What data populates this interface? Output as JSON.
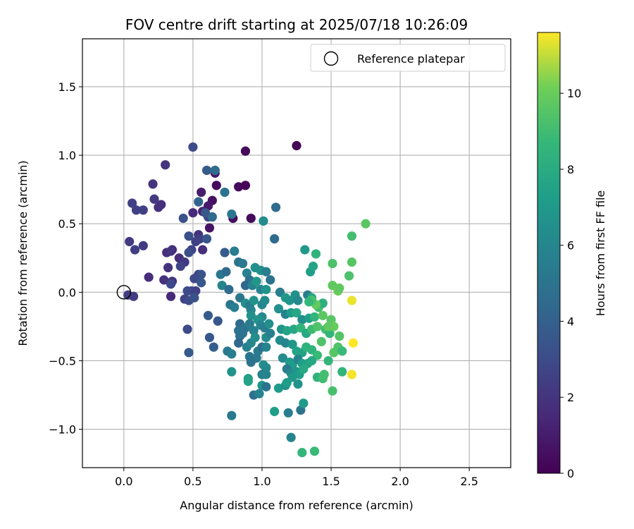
{
  "chart_data": {
    "type": "scatter",
    "title": "FOV centre drift starting at 2025/07/18 10:26:09",
    "xlabel": "Angular distance from reference (arcmin)",
    "ylabel": "Rotation from reference (arcmin)",
    "xlim": [
      -0.3,
      2.8
    ],
    "ylim": [
      -1.28,
      1.85
    ],
    "xticks": [
      0.0,
      0.5,
      1.0,
      1.5,
      2.0,
      2.5
    ],
    "xtick_labels": [
      "0.0",
      "0.5",
      "1.0",
      "1.5",
      "2.0",
      "2.5"
    ],
    "yticks": [
      -1.0,
      -0.5,
      0.0,
      0.5,
      1.0,
      1.5
    ],
    "ytick_labels": [
      "−1.0",
      "−0.5",
      "0.0",
      "0.5",
      "1.0",
      "1.5"
    ],
    "grid": true,
    "legend": {
      "placement": "upper-right",
      "entries": [
        "Reference platepar"
      ]
    },
    "reference_point": {
      "x": 0.0,
      "y": 0.0,
      "name": "Reference platepar"
    },
    "colorbar": {
      "label": "Hours from first FF file",
      "range": [
        0,
        11.6
      ],
      "ticks": [
        0,
        2,
        4,
        6,
        8,
        10
      ],
      "tick_labels": [
        "0",
        "2",
        "4",
        "6",
        "8",
        "10"
      ],
      "colormap": "viridis"
    },
    "points": [
      {
        "x": 1.25,
        "y": 1.07,
        "t": 0.1
      },
      {
        "x": 0.88,
        "y": 1.03,
        "t": 0.3
      },
      {
        "x": 0.66,
        "y": 0.87,
        "t": 0.8
      },
      {
        "x": 0.67,
        "y": 0.78,
        "t": 0.4
      },
      {
        "x": 0.83,
        "y": 0.77,
        "t": 0.3
      },
      {
        "x": 0.88,
        "y": 0.78,
        "t": 0.2
      },
      {
        "x": 0.92,
        "y": 0.54,
        "t": 0.4
      },
      {
        "x": 0.64,
        "y": 0.67,
        "t": 0.6
      },
      {
        "x": 0.61,
        "y": 0.63,
        "t": 0.9
      },
      {
        "x": 0.56,
        "y": 0.73,
        "t": 1.0
      },
      {
        "x": 0.62,
        "y": 0.47,
        "t": 0.7
      },
      {
        "x": 0.79,
        "y": 0.54,
        "t": 0.5
      },
      {
        "x": 0.57,
        "y": 0.59,
        "t": 1.3
      },
      {
        "x": 0.61,
        "y": 0.55,
        "t": 2.8
      },
      {
        "x": 0.5,
        "y": 1.06,
        "t": 3.0
      },
      {
        "x": 0.6,
        "y": 0.89,
        "t": 3.8
      },
      {
        "x": 0.66,
        "y": 0.89,
        "t": 4.6
      },
      {
        "x": 0.3,
        "y": 0.93,
        "t": 2.0
      },
      {
        "x": 0.21,
        "y": 0.79,
        "t": 2.0
      },
      {
        "x": 0.22,
        "y": 0.68,
        "t": 2.2
      },
      {
        "x": 0.25,
        "y": 0.62,
        "t": 1.9
      },
      {
        "x": 0.27,
        "y": 0.64,
        "t": 1.8
      },
      {
        "x": 0.06,
        "y": 0.65,
        "t": 2.5
      },
      {
        "x": 0.09,
        "y": 0.6,
        "t": 2.5
      },
      {
        "x": 0.14,
        "y": 0.6,
        "t": 2.5
      },
      {
        "x": 0.04,
        "y": 0.37,
        "t": 2.3
      },
      {
        "x": 0.08,
        "y": 0.31,
        "t": 2.4
      },
      {
        "x": 0.14,
        "y": 0.34,
        "t": 2.3
      },
      {
        "x": 0.31,
        "y": 0.29,
        "t": 1.8
      },
      {
        "x": 0.35,
        "y": 0.31,
        "t": 1.5
      },
      {
        "x": 0.34,
        "y": 0.3,
        "t": 2.0
      },
      {
        "x": 0.32,
        "y": 0.18,
        "t": 1.9
      },
      {
        "x": 0.4,
        "y": 0.25,
        "t": 1.7
      },
      {
        "x": 0.44,
        "y": 0.22,
        "t": 2.2
      },
      {
        "x": 0.41,
        "y": 0.19,
        "t": 2.6
      },
      {
        "x": 0.18,
        "y": 0.11,
        "t": 1.7
      },
      {
        "x": 0.29,
        "y": 0.09,
        "t": 1.9
      },
      {
        "x": 0.35,
        "y": 0.08,
        "t": 2.0
      },
      {
        "x": 0.34,
        "y": 0.06,
        "t": 2.9
      },
      {
        "x": 0.34,
        "y": -0.03,
        "t": 1.6
      },
      {
        "x": 0.03,
        "y": -0.02,
        "t": 2.5
      },
      {
        "x": 0.07,
        "y": -0.03,
        "t": 2.3
      },
      {
        "x": 0.43,
        "y": 0.54,
        "t": 3.3
      },
      {
        "x": 0.47,
        "y": 0.41,
        "t": 3.2
      },
      {
        "x": 0.5,
        "y": 0.58,
        "t": 1.6
      },
      {
        "x": 0.54,
        "y": 0.42,
        "t": 1.9
      },
      {
        "x": 0.55,
        "y": 0.39,
        "t": 2.4
      },
      {
        "x": 0.52,
        "y": 0.37,
        "t": 2.6
      },
      {
        "x": 0.49,
        "y": 0.31,
        "t": 2.7
      },
      {
        "x": 0.47,
        "y": 0.29,
        "t": 3.1
      },
      {
        "x": 0.57,
        "y": 0.31,
        "t": 1.8
      },
      {
        "x": 0.54,
        "y": 0.13,
        "t": 2.7
      },
      {
        "x": 0.56,
        "y": 0.13,
        "t": 3.4
      },
      {
        "x": 0.51,
        "y": 0.1,
        "t": 2.9
      },
      {
        "x": 0.56,
        "y": 0.07,
        "t": 3.6
      },
      {
        "x": 0.46,
        "y": 0.01,
        "t": 3.1
      },
      {
        "x": 0.49,
        "y": 0.01,
        "t": 2.9
      },
      {
        "x": 0.52,
        "y": 0.01,
        "t": 2.6
      },
      {
        "x": 0.44,
        "y": -0.05,
        "t": 2.6
      },
      {
        "x": 0.47,
        "y": -0.06,
        "t": 3.0
      },
      {
        "x": 0.51,
        "y": -0.04,
        "t": 3.3
      },
      {
        "x": 0.54,
        "y": 0.66,
        "t": 4.2
      },
      {
        "x": 0.59,
        "y": 0.58,
        "t": 3.6
      },
      {
        "x": 0.64,
        "y": 0.55,
        "t": 4.5
      },
      {
        "x": 0.6,
        "y": 0.39,
        "t": 3.5
      },
      {
        "x": 0.73,
        "y": 0.73,
        "t": 5.0
      },
      {
        "x": 0.78,
        "y": 0.57,
        "t": 5.2
      },
      {
        "x": 0.73,
        "y": 0.29,
        "t": 3.8
      },
      {
        "x": 0.8,
        "y": 0.3,
        "t": 5.5
      },
      {
        "x": 1.1,
        "y": 0.62,
        "t": 4.6
      },
      {
        "x": 1.09,
        "y": 0.39,
        "t": 4.6
      },
      {
        "x": 1.01,
        "y": 0.52,
        "t": 6.3
      },
      {
        "x": 0.61,
        "y": -0.17,
        "t": 3.8
      },
      {
        "x": 0.68,
        "y": -0.21,
        "t": 3.6
      },
      {
        "x": 0.62,
        "y": -0.33,
        "t": 3.6
      },
      {
        "x": 0.65,
        "y": -0.4,
        "t": 3.9
      },
      {
        "x": 0.46,
        "y": -0.27,
        "t": 3.0
      },
      {
        "x": 0.47,
        "y": -0.44,
        "t": 3.7
      },
      {
        "x": 0.7,
        "y": 0.13,
        "t": 5.2
      },
      {
        "x": 0.74,
        "y": 0.15,
        "t": 4.5
      },
      {
        "x": 0.71,
        "y": 0.05,
        "t": 5.9
      },
      {
        "x": 0.76,
        "y": 0.02,
        "t": 4.6
      },
      {
        "x": 0.77,
        "y": -0.09,
        "t": 5.1
      },
      {
        "x": 0.8,
        "y": -0.11,
        "t": 5.6
      },
      {
        "x": 0.75,
        "y": -0.43,
        "t": 5.3
      },
      {
        "x": 0.78,
        "y": -0.45,
        "t": 5.6
      },
      {
        "x": 0.83,
        "y": 0.22,
        "t": 5.0
      },
      {
        "x": 0.86,
        "y": 0.21,
        "t": 5.3
      },
      {
        "x": 0.89,
        "y": 0.14,
        "t": 5.8
      },
      {
        "x": 0.91,
        "y": 0.09,
        "t": 4.8
      },
      {
        "x": 0.88,
        "y": 0.05,
        "t": 4.3
      },
      {
        "x": 0.95,
        "y": 0.18,
        "t": 6.5
      },
      {
        "x": 0.99,
        "y": 0.16,
        "t": 6.6
      },
      {
        "x": 1.03,
        "y": 0.15,
        "t": 5.6
      },
      {
        "x": 0.93,
        "y": 0.05,
        "t": 5.9
      },
      {
        "x": 0.96,
        "y": 0.08,
        "t": 6.9
      },
      {
        "x": 0.99,
        "y": 0.02,
        "t": 5.9
      },
      {
        "x": 1.03,
        "y": 0.02,
        "t": 6.8
      },
      {
        "x": 1.06,
        "y": 0.09,
        "t": 5.0
      },
      {
        "x": 0.84,
        "y": -0.04,
        "t": 5.2
      },
      {
        "x": 0.88,
        "y": -0.08,
        "t": 6.4
      },
      {
        "x": 0.91,
        "y": -0.1,
        "t": 5.3
      },
      {
        "x": 0.92,
        "y": -0.13,
        "t": 5.9
      },
      {
        "x": 0.94,
        "y": -0.06,
        "t": 6.6
      },
      {
        "x": 1.0,
        "y": -0.09,
        "t": 6.0
      },
      {
        "x": 1.02,
        "y": -0.06,
        "t": 6.2
      },
      {
        "x": 0.92,
        "y": -0.17,
        "t": 6.5
      },
      {
        "x": 1.0,
        "y": -0.18,
        "t": 6.1
      },
      {
        "x": 0.84,
        "y": -0.23,
        "t": 4.5
      },
      {
        "x": 0.88,
        "y": -0.26,
        "t": 5.0
      },
      {
        "x": 0.91,
        "y": -0.23,
        "t": 5.4
      },
      {
        "x": 0.94,
        "y": -0.28,
        "t": 5.8
      },
      {
        "x": 0.97,
        "y": -0.2,
        "t": 6.7
      },
      {
        "x": 0.99,
        "y": -0.24,
        "t": 5.9
      },
      {
        "x": 1.02,
        "y": -0.26,
        "t": 5.5
      },
      {
        "x": 1.05,
        "y": -0.23,
        "t": 6.4
      },
      {
        "x": 0.83,
        "y": -0.28,
        "t": 5.0
      },
      {
        "x": 0.84,
        "y": -0.32,
        "t": 4.8
      },
      {
        "x": 0.86,
        "y": -0.3,
        "t": 4.9
      },
      {
        "x": 0.83,
        "y": -0.37,
        "t": 4.4
      },
      {
        "x": 0.89,
        "y": -0.4,
        "t": 5.7
      },
      {
        "x": 0.92,
        "y": -0.37,
        "t": 6.0
      },
      {
        "x": 0.95,
        "y": -0.33,
        "t": 6.4
      },
      {
        "x": 0.97,
        "y": -0.43,
        "t": 5.4
      },
      {
        "x": 1.0,
        "y": -0.4,
        "t": 4.8
      },
      {
        "x": 1.03,
        "y": -0.33,
        "t": 6.3
      },
      {
        "x": 1.03,
        "y": -0.4,
        "t": 5.9
      },
      {
        "x": 1.06,
        "y": -0.3,
        "t": 5.6
      },
      {
        "x": 0.91,
        "y": -0.47,
        "t": 5.0
      },
      {
        "x": 0.96,
        "y": -0.48,
        "t": 5.3
      },
      {
        "x": 0.92,
        "y": -0.51,
        "t": 4.9
      },
      {
        "x": 1.01,
        "y": -0.53,
        "t": 6.4
      },
      {
        "x": 1.03,
        "y": -0.55,
        "t": 6.2
      },
      {
        "x": 1.0,
        "y": -0.6,
        "t": 5.7
      },
      {
        "x": 1.03,
        "y": -0.6,
        "t": 5.9
      },
      {
        "x": 0.9,
        "y": -0.63,
        "t": 7.3
      },
      {
        "x": 0.9,
        "y": -0.65,
        "t": 7.6
      },
      {
        "x": 1.0,
        "y": -0.68,
        "t": 6.8
      },
      {
        "x": 1.03,
        "y": -0.69,
        "t": 5.0
      },
      {
        "x": 0.94,
        "y": -0.75,
        "t": 4.8
      },
      {
        "x": 0.98,
        "y": -0.74,
        "t": 5.9
      },
      {
        "x": 0.78,
        "y": -0.58,
        "t": 6.7
      },
      {
        "x": 0.78,
        "y": -0.9,
        "t": 5.3
      },
      {
        "x": 1.09,
        "y": -0.87,
        "t": 7.3
      },
      {
        "x": 1.19,
        "y": -0.88,
        "t": 5.6
      },
      {
        "x": 1.12,
        "y": -0.7,
        "t": 7.1
      },
      {
        "x": 1.17,
        "y": -0.68,
        "t": 6.6
      },
      {
        "x": 1.21,
        "y": -1.06,
        "t": 5.9
      },
      {
        "x": 1.29,
        "y": -1.17,
        "t": 8.6
      },
      {
        "x": 1.38,
        "y": -1.16,
        "t": 8.8
      },
      {
        "x": 1.28,
        "y": -0.86,
        "t": 5.1
      },
      {
        "x": 1.3,
        "y": -0.81,
        "t": 7.1
      },
      {
        "x": 1.13,
        "y": 0.0,
        "t": 5.6
      },
      {
        "x": 1.17,
        "y": -0.04,
        "t": 7.1
      },
      {
        "x": 1.2,
        "y": -0.06,
        "t": 6.7
      },
      {
        "x": 1.24,
        "y": -0.02,
        "t": 6.6
      },
      {
        "x": 1.26,
        "y": -0.06,
        "t": 6.1
      },
      {
        "x": 1.33,
        "y": -0.02,
        "t": 5.5
      },
      {
        "x": 1.36,
        "y": -0.04,
        "t": 7.8
      },
      {
        "x": 1.12,
        "y": -0.12,
        "t": 6.5
      },
      {
        "x": 1.17,
        "y": -0.16,
        "t": 5.8
      },
      {
        "x": 1.21,
        "y": -0.15,
        "t": 7.2
      },
      {
        "x": 1.25,
        "y": -0.15,
        "t": 7.8
      },
      {
        "x": 1.29,
        "y": -0.2,
        "t": 6.4
      },
      {
        "x": 1.34,
        "y": -0.19,
        "t": 7.3
      },
      {
        "x": 1.38,
        "y": -0.18,
        "t": 8.5
      },
      {
        "x": 1.41,
        "y": -0.11,
        "t": 9.0
      },
      {
        "x": 1.44,
        "y": -0.08,
        "t": 8.2
      },
      {
        "x": 1.14,
        "y": -0.27,
        "t": 6.8
      },
      {
        "x": 1.18,
        "y": -0.28,
        "t": 7.5
      },
      {
        "x": 1.23,
        "y": -0.27,
        "t": 7.8
      },
      {
        "x": 1.28,
        "y": -0.26,
        "t": 8.6
      },
      {
        "x": 1.32,
        "y": -0.3,
        "t": 7.9
      },
      {
        "x": 1.36,
        "y": -0.27,
        "t": 8.9
      },
      {
        "x": 1.4,
        "y": -0.25,
        "t": 9.4
      },
      {
        "x": 1.46,
        "y": -0.27,
        "t": 9.1
      },
      {
        "x": 1.49,
        "y": -0.3,
        "t": 8.6
      },
      {
        "x": 1.13,
        "y": -0.35,
        "t": 6.3
      },
      {
        "x": 1.17,
        "y": -0.37,
        "t": 6.0
      },
      {
        "x": 1.22,
        "y": -0.38,
        "t": 6.9
      },
      {
        "x": 1.25,
        "y": -0.43,
        "t": 7.6
      },
      {
        "x": 1.29,
        "y": -0.44,
        "t": 7.5
      },
      {
        "x": 1.32,
        "y": -0.4,
        "t": 8.4
      },
      {
        "x": 1.36,
        "y": -0.42,
        "t": 8.4
      },
      {
        "x": 1.4,
        "y": -0.46,
        "t": 8.8
      },
      {
        "x": 1.43,
        "y": -0.36,
        "t": 9.4
      },
      {
        "x": 1.15,
        "y": -0.48,
        "t": 6.2
      },
      {
        "x": 1.2,
        "y": -0.51,
        "t": 7.0
      },
      {
        "x": 1.22,
        "y": -0.53,
        "t": 7.2
      },
      {
        "x": 1.26,
        "y": -0.49,
        "t": 5.9
      },
      {
        "x": 1.29,
        "y": -0.52,
        "t": 7.2
      },
      {
        "x": 1.33,
        "y": -0.52,
        "t": 7.6
      },
      {
        "x": 1.36,
        "y": -0.5,
        "t": 7.8
      },
      {
        "x": 1.18,
        "y": -0.56,
        "t": 5.4
      },
      {
        "x": 1.21,
        "y": -0.59,
        "t": 6.1
      },
      {
        "x": 1.25,
        "y": -0.58,
        "t": 6.8
      },
      {
        "x": 1.27,
        "y": -0.6,
        "t": 7.3
      },
      {
        "x": 1.3,
        "y": -0.56,
        "t": 7.9
      },
      {
        "x": 1.18,
        "y": -0.66,
        "t": 7.2
      },
      {
        "x": 1.22,
        "y": -0.62,
        "t": 7.0
      },
      {
        "x": 1.26,
        "y": -0.67,
        "t": 6.7
      },
      {
        "x": 1.4,
        "y": -0.62,
        "t": 8.4
      },
      {
        "x": 1.44,
        "y": -0.63,
        "t": 9.0
      },
      {
        "x": 1.45,
        "y": -0.6,
        "t": 9.1
      },
      {
        "x": 1.51,
        "y": -0.72,
        "t": 9.2
      },
      {
        "x": 1.48,
        "y": -0.5,
        "t": 8.6
      },
      {
        "x": 1.52,
        "y": -0.44,
        "t": 9.6
      },
      {
        "x": 1.55,
        "y": -0.4,
        "t": 9.4
      },
      {
        "x": 1.58,
        "y": -0.43,
        "t": 8.8
      },
      {
        "x": 1.58,
        "y": -0.58,
        "t": 8.5
      },
      {
        "x": 1.56,
        "y": -0.32,
        "t": 9.5
      },
      {
        "x": 1.5,
        "y": -0.2,
        "t": 9.6
      },
      {
        "x": 1.52,
        "y": -0.25,
        "t": 10.0
      },
      {
        "x": 1.48,
        "y": -0.25,
        "t": 9.8
      },
      {
        "x": 1.44,
        "y": -0.17,
        "t": 9.7
      },
      {
        "x": 1.39,
        "y": -0.09,
        "t": 9.9
      },
      {
        "x": 1.36,
        "y": -0.06,
        "t": 9.3
      },
      {
        "x": 1.34,
        "y": -0.07,
        "t": 8.7
      },
      {
        "x": 1.65,
        "y": -0.06,
        "t": 11.4
      },
      {
        "x": 1.66,
        "y": -0.37,
        "t": 11.6
      },
      {
        "x": 1.65,
        "y": -0.6,
        "t": 11.5
      },
      {
        "x": 1.31,
        "y": 0.31,
        "t": 7.0
      },
      {
        "x": 1.39,
        "y": 0.28,
        "t": 8.4
      },
      {
        "x": 1.35,
        "y": 0.15,
        "t": 7.3
      },
      {
        "x": 1.37,
        "y": 0.19,
        "t": 7.6
      },
      {
        "x": 1.51,
        "y": 0.21,
        "t": 9.3
      },
      {
        "x": 1.51,
        "y": 0.05,
        "t": 9.8
      },
      {
        "x": 1.55,
        "y": 0.01,
        "t": 10.0
      },
      {
        "x": 1.56,
        "y": 0.03,
        "t": 9.8
      },
      {
        "x": 1.63,
        "y": 0.12,
        "t": 9.3
      },
      {
        "x": 1.65,
        "y": 0.22,
        "t": 9.6
      },
      {
        "x": 1.65,
        "y": 0.41,
        "t": 9.1
      },
      {
        "x": 1.75,
        "y": 0.5,
        "t": 9.7
      }
    ]
  }
}
